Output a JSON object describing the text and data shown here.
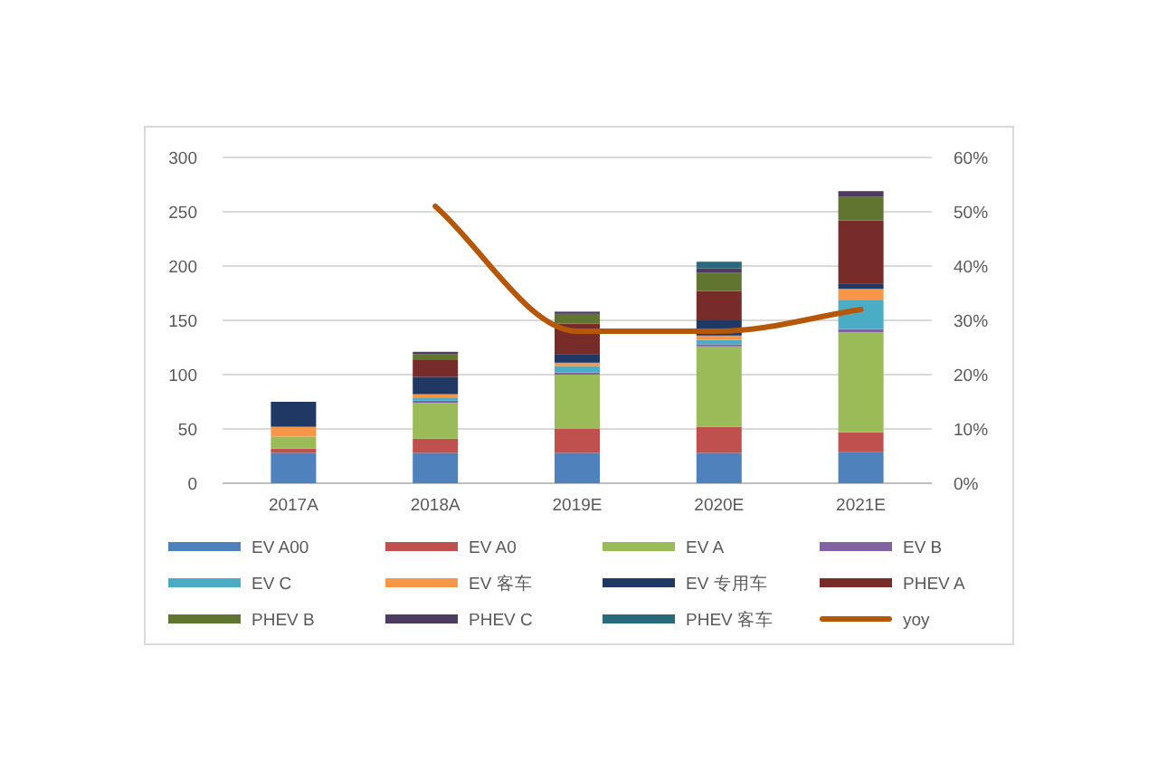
{
  "chart_data": {
    "type": "bar",
    "stacked": true,
    "categories": [
      "2017A",
      "2018A",
      "2019E",
      "2020E",
      "2021E"
    ],
    "ylim": [
      0,
      300
    ],
    "yticks": [
      0,
      50,
      100,
      150,
      200,
      250,
      300
    ],
    "y2lim": [
      0,
      60
    ],
    "y2ticks": [
      {
        "value": 0,
        "label": "0%"
      },
      {
        "value": 10,
        "label": "10%"
      },
      {
        "value": 20,
        "label": "20%"
      },
      {
        "value": 30,
        "label": "30%"
      },
      {
        "value": 40,
        "label": "40%"
      },
      {
        "value": 50,
        "label": "50%"
      },
      {
        "value": 60,
        "label": "60%"
      }
    ],
    "grid": "y",
    "legend": "bottom",
    "series": [
      {
        "name": "EV A00",
        "color": "#4f81bd",
        "values": [
          28,
          28,
          28,
          28,
          29
        ]
      },
      {
        "name": "EV A0",
        "color": "#c0504d",
        "values": [
          4,
          13,
          22,
          24,
          18
        ]
      },
      {
        "name": "EV A",
        "color": "#9bbb59",
        "values": [
          11,
          33,
          50,
          74,
          92
        ]
      },
      {
        "name": "EV B",
        "color": "#8064a2",
        "values": [
          0,
          2,
          2,
          2,
          3
        ]
      },
      {
        "name": "EV C",
        "color": "#4bacc6",
        "values": [
          0,
          3,
          6,
          4,
          27
        ]
      },
      {
        "name": "EV 客车",
        "color": "#f79646",
        "values": [
          9,
          3,
          3,
          4,
          10
        ]
      },
      {
        "name": "EV 专用车",
        "color": "#1f3864",
        "values": [
          23,
          16,
          8,
          14,
          5
        ]
      },
      {
        "name": "PHEV A",
        "color": "#772c2a",
        "values": [
          0,
          16,
          28,
          27,
          58
        ]
      },
      {
        "name": "PHEV B",
        "color": "#5f7530",
        "values": [
          0,
          5,
          9,
          17,
          22
        ]
      },
      {
        "name": "PHEV C",
        "color": "#4d3b62",
        "values": [
          0,
          2,
          2,
          4,
          5
        ]
      },
      {
        "name": "PHEV 客车",
        "color": "#276a7c",
        "values": [
          0,
          0,
          0,
          6,
          0
        ]
      },
      {
        "name": "yoy",
        "type": "line",
        "axis": "y2",
        "color": "#b65708",
        "values": [
          null,
          51,
          28,
          28,
          32
        ]
      }
    ]
  }
}
